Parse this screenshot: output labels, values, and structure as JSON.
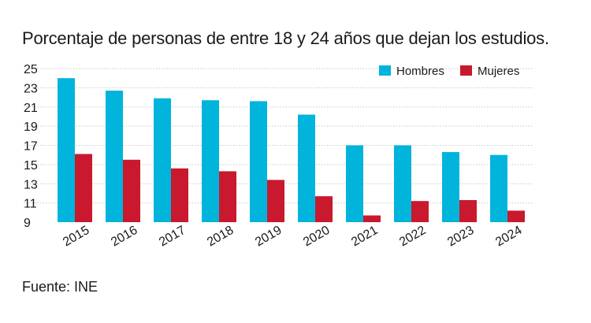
{
  "title": "Porcentaje de personas de entre 18 y 24 años que dejan los estudios.",
  "source": "Fuente: INE",
  "colors": {
    "hombres": "#00b4dc",
    "mujeres": "#c8192e"
  },
  "chart_data": {
    "type": "bar",
    "title": "Porcentaje de personas de entre 18 y 24 años que dejan los estudios.",
    "xlabel": "",
    "ylabel": "",
    "ylim": [
      9,
      25
    ],
    "yticks": [
      9,
      11,
      13,
      15,
      17,
      19,
      21,
      23,
      25
    ],
    "categories": [
      "2015",
      "2016",
      "2017",
      "2018",
      "2019",
      "2020",
      "2021",
      "2022",
      "2023",
      "2024"
    ],
    "legend_position": "top-right",
    "series": [
      {
        "name": "Hombres",
        "values": [
          24.0,
          22.7,
          21.9,
          21.7,
          21.6,
          20.2,
          17.0,
          17.0,
          16.3,
          16.0
        ]
      },
      {
        "name": "Mujeres",
        "values": [
          16.1,
          15.5,
          14.6,
          14.3,
          13.4,
          11.7,
          9.7,
          11.2,
          11.3,
          10.2
        ]
      }
    ]
  }
}
